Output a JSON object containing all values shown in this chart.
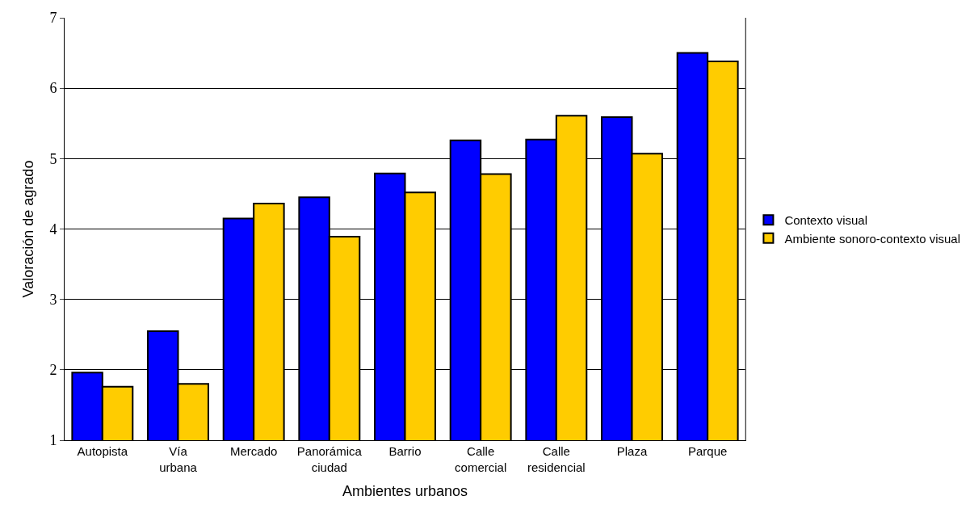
{
  "chart_data": {
    "type": "bar",
    "xlabel": "Ambientes urbanos",
    "ylabel": "Valoración de agrado",
    "categories": [
      "Autopista",
      "Vía urbana",
      "Mercado",
      "Panorámica ciudad",
      "Barrio",
      "Calle comercial",
      "Calle residencial",
      "Plaza",
      "Parque"
    ],
    "series": [
      {
        "name": "Contexto visual",
        "color": "#0000ff",
        "values": [
          1.96,
          2.55,
          4.15,
          4.45,
          4.79,
          5.26,
          5.27,
          5.59,
          6.5
        ]
      },
      {
        "name": "Ambiente sonoro-contexto visual",
        "color": "#ffcc00",
        "values": [
          1.76,
          1.8,
          4.36,
          3.89,
          4.52,
          4.78,
          5.61,
          5.07,
          6.38
        ]
      }
    ],
    "ylim": [
      1,
      7
    ],
    "yticks": [
      1,
      2,
      3,
      4,
      5,
      6,
      7
    ],
    "grid": "y",
    "legend": "right"
  }
}
